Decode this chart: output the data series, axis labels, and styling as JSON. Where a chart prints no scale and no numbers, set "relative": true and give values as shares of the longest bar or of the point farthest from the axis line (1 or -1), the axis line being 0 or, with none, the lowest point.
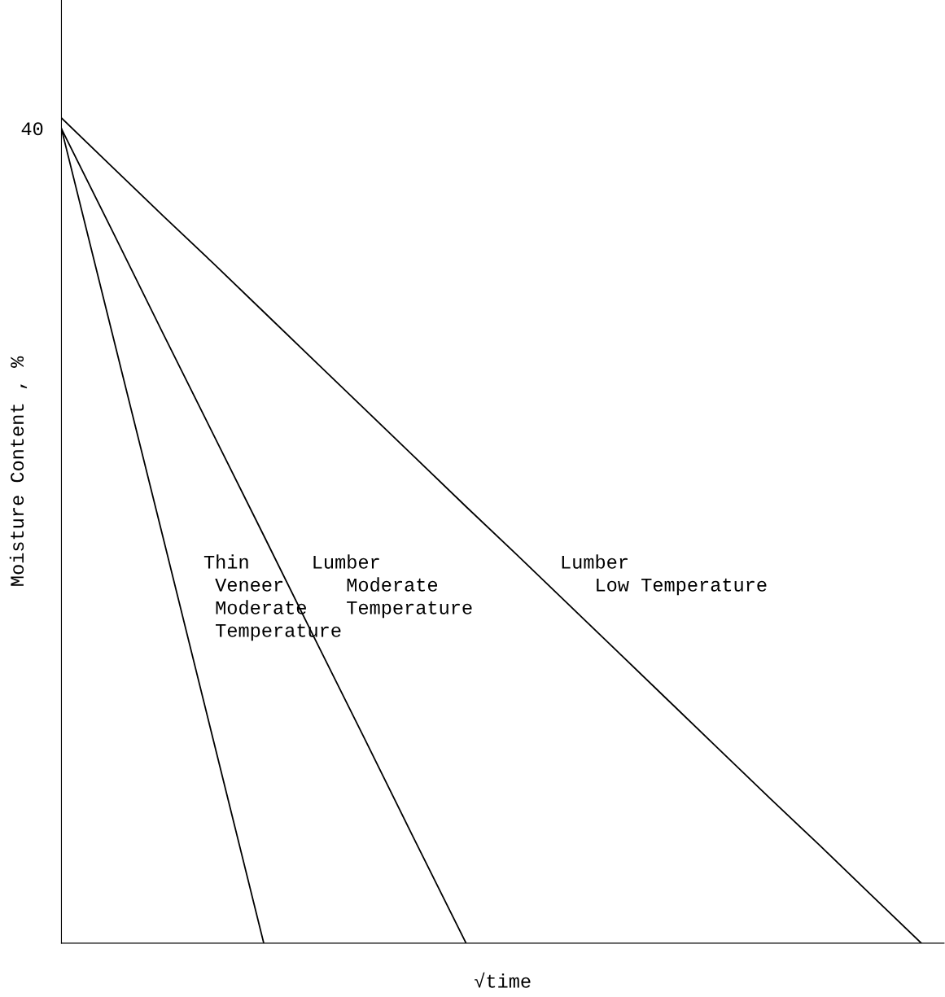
{
  "chart_data": {
    "type": "line",
    "relative": true,
    "xlabel": "√time",
    "ylabel": "Moisture Content , %",
    "legend": false,
    "marker": "none",
    "line_style": "solid",
    "annotations": [
      "40"
    ],
    "categories": [
      null,
      null,
      null,
      null,
      null,
      null,
      null,
      null,
      null,
      null,
      null,
      null,
      null,
      null,
      null,
      null,
      null,
      null
    ],
    "series": [
      {
        "name": "Thin\n Veneer\n Moderate\n Temperature",
        "color": "#000000",
        "values": [
          0.987,
          0.74,
          0.494,
          0.247,
          0,
          null,
          null,
          null,
          null,
          null,
          null,
          null,
          null,
          null,
          null,
          null,
          null,
          null
        ]
      },
      {
        "name": "Lumber\n   Moderate\n   Temperature",
        "color": "#000000",
        "values": [
          0.987,
          0.864,
          0.74,
          0.617,
          0.494,
          0.37,
          0.247,
          0.123,
          0,
          null,
          null,
          null,
          null,
          null,
          null,
          null,
          null,
          null
        ]
      },
      {
        "name": "Lumber\n   Low Temperature",
        "color": "#000000",
        "values": [
          1,
          0.941,
          0.882,
          0.824,
          0.765,
          0.706,
          0.647,
          0.588,
          0.529,
          0.471,
          0.412,
          0.353,
          0.294,
          0.235,
          0.176,
          0.118,
          0.059,
          0
        ]
      }
    ]
  }
}
